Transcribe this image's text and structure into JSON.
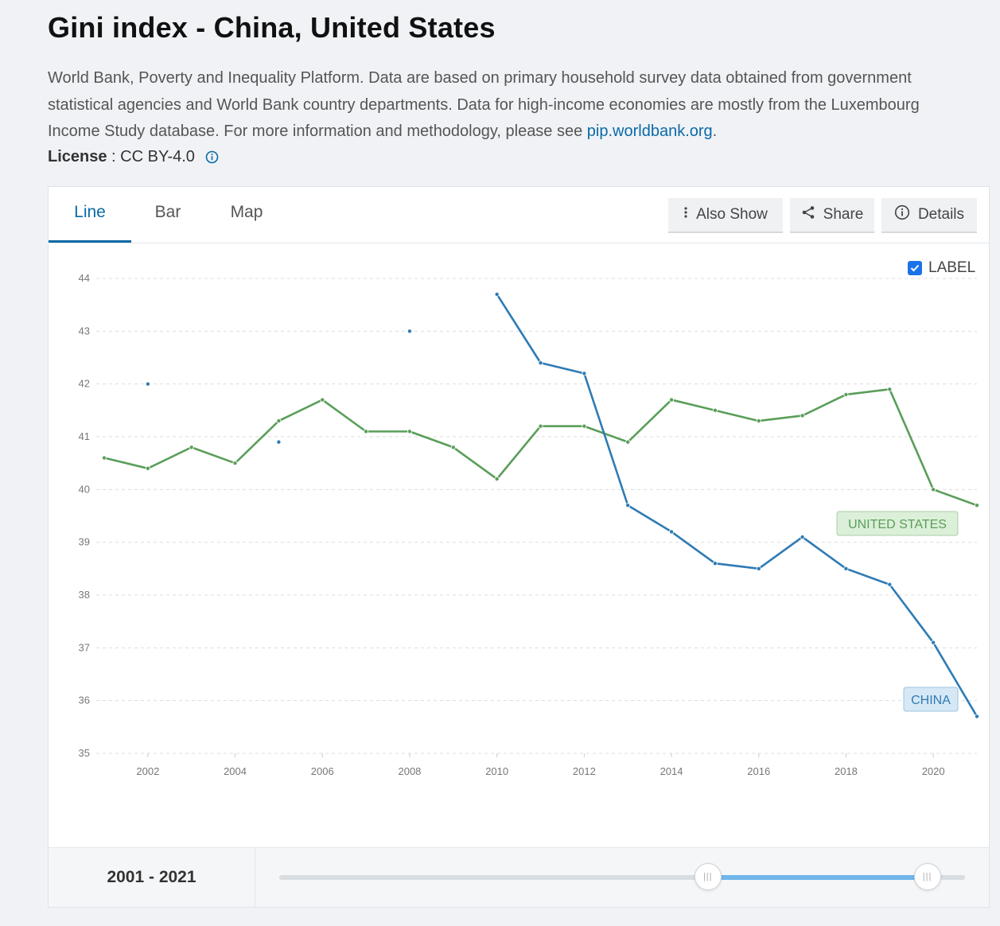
{
  "page": {
    "title": "Gini index - China, United States",
    "description_text": "World Bank, Poverty and Inequality Platform. Data are based on primary household survey data obtained from government statistical agencies and World Bank country departments. Data for high-income economies are mostly from the Luxembourg Income Study database. For more information and methodology, please see ",
    "description_link": "pip.worldbank.org",
    "description_end": ".",
    "license_label": "License",
    "license_sep": " : ",
    "license_value": "CC BY-4.0"
  },
  "tabs": [
    {
      "label": "Line",
      "active": true
    },
    {
      "label": "Bar",
      "active": false
    },
    {
      "label": "Map",
      "active": false
    }
  ],
  "toolbar": {
    "also_show": "Also Show",
    "share": "Share",
    "details": "Details"
  },
  "label_toggle": {
    "label": "LABEL",
    "checked": true
  },
  "range": {
    "label": "2001 - 2021",
    "start_fraction": 0.625,
    "end_fraction": 0.945
  },
  "colors": {
    "china": "#2e7bb4",
    "united_states": "#5a9e59",
    "accent": "#0a6aa6"
  },
  "chart_data": {
    "type": "line",
    "title": "",
    "xlabel": "",
    "ylabel": "",
    "xlim": [
      2001,
      2021
    ],
    "ylim": [
      35,
      44
    ],
    "x_ticks": [
      "2002",
      "2004",
      "2006",
      "2008",
      "2010",
      "2012",
      "2014",
      "2016",
      "2018",
      "2020"
    ],
    "y_ticks": [
      "35",
      "36",
      "37",
      "38",
      "39",
      "40",
      "41",
      "42",
      "43",
      "44"
    ],
    "grid": true,
    "series": [
      {
        "name": "UNITED STATES",
        "color": "#5a9e59",
        "x": [
          2001,
          2002,
          2003,
          2004,
          2005,
          2006,
          2007,
          2008,
          2009,
          2010,
          2011,
          2012,
          2013,
          2014,
          2015,
          2016,
          2017,
          2018,
          2019,
          2020,
          2021
        ],
        "y": [
          40.6,
          40.4,
          40.8,
          40.5,
          41.3,
          41.7,
          41.1,
          41.1,
          40.8,
          40.2,
          41.2,
          41.2,
          40.9,
          41.7,
          41.5,
          41.3,
          41.4,
          41.8,
          41.9,
          40.0,
          39.7
        ]
      },
      {
        "name": "CHINA",
        "color": "#2e7bb4",
        "x": [
          2002,
          2005,
          2008,
          2010,
          2011,
          2012,
          2013,
          2014,
          2015,
          2016,
          2017,
          2018,
          2019,
          2020,
          2021
        ],
        "y": [
          42.0,
          40.9,
          43.0,
          43.7,
          42.4,
          42.2,
          39.7,
          39.2,
          38.6,
          38.5,
          39.1,
          38.5,
          38.2,
          37.1,
          35.7
        ]
      }
    ]
  }
}
